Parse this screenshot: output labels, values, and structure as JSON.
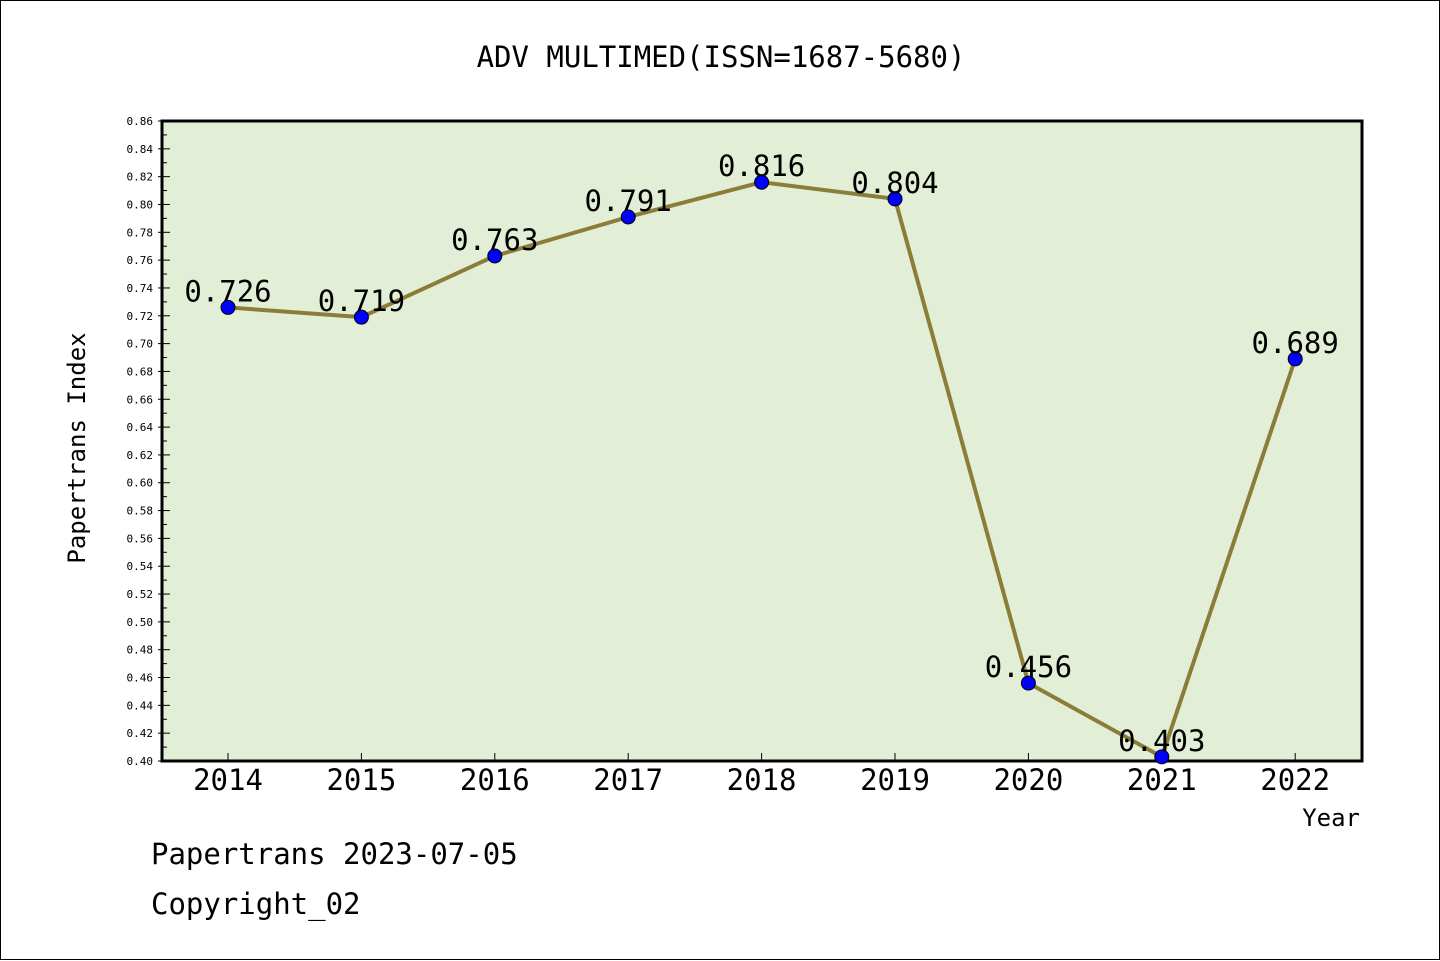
{
  "chart_data": {
    "type": "line",
    "title": "ADV MULTIMED(ISSN=1687-5680)",
    "xlabel": "Year",
    "ylabel": "Papertrans Index",
    "categories": [
      "2014",
      "2015",
      "2016",
      "2017",
      "2018",
      "2019",
      "2020",
      "2021",
      "2022"
    ],
    "series": [
      {
        "values": [
          0.726,
          0.719,
          0.763,
          0.791,
          0.816,
          0.804,
          0.456,
          0.403,
          0.689
        ],
        "labels": [
          "0.726",
          "0.719",
          "0.763",
          "0.791",
          "0.816",
          "0.804",
          "0.456",
          "0.403",
          "0.689"
        ]
      }
    ],
    "ylim": [
      0.4,
      0.86
    ],
    "yticks": [
      "0.40",
      "0.42",
      "0.44",
      "0.46",
      "0.48",
      "0.50",
      "0.52",
      "0.54",
      "0.56",
      "0.58",
      "0.60",
      "0.62",
      "0.64",
      "0.66",
      "0.68",
      "0.70",
      "0.72",
      "0.74",
      "0.76",
      "0.78",
      "0.80",
      "0.82",
      "0.84",
      "0.86"
    ],
    "grid": false,
    "colors": {
      "plot_background": "#e2efd6",
      "line": "#8b7d38",
      "marker": "#0000ff"
    }
  },
  "footer": {
    "line1": "Papertrans 2023-07-05",
    "line2": "Copyright_02"
  }
}
